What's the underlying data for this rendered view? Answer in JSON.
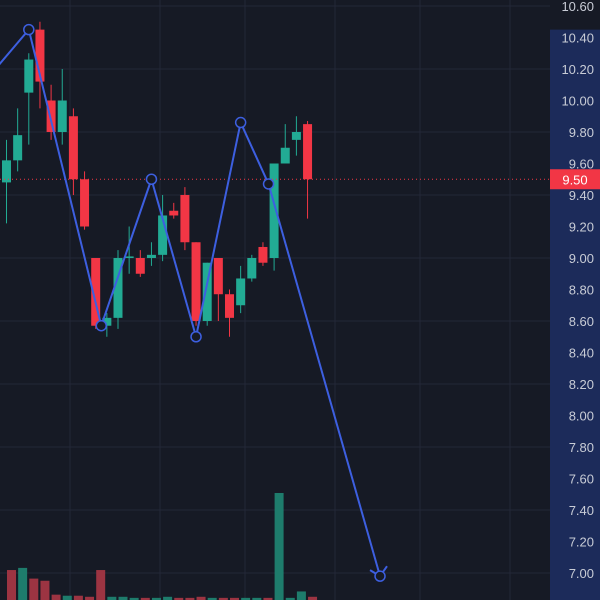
{
  "colors": {
    "background": "#161a25",
    "grid": "#232838",
    "axis_panel": "#1c2b5a",
    "up": "#22ab94",
    "down": "#f23645",
    "up_volume": "#1e7c6c",
    "down_volume": "#9c3442",
    "pattern_line": "#3d5fe0",
    "current_price": "#f23645",
    "axis_text": "#c8ccd6"
  },
  "chart_data": {
    "type": "candlestick",
    "title": "",
    "xlabel": "",
    "ylabel": "",
    "ylim": [
      7.0,
      10.6
    ],
    "grid": true,
    "current_price": 9.5,
    "current_price_label": "9.50",
    "y_ticks": [
      "7.00",
      "7.20",
      "7.40",
      "7.60",
      "7.80",
      "8.00",
      "8.20",
      "8.40",
      "8.60",
      "8.80",
      "9.00",
      "9.20",
      "9.40",
      "9.60",
      "9.80",
      "10.00",
      "10.20",
      "10.40",
      "10.60"
    ],
    "candles": [
      {
        "open": 9.48,
        "close": 9.62,
        "high": 9.75,
        "low": 9.22
      },
      {
        "open": 9.62,
        "close": 9.78,
        "high": 9.95,
        "low": 9.55
      },
      {
        "open": 10.05,
        "close": 10.26,
        "high": 10.3,
        "low": 9.72
      },
      {
        "open": 10.45,
        "close": 10.12,
        "high": 10.5,
        "low": 9.95
      },
      {
        "open": 10.0,
        "close": 9.8,
        "high": 10.1,
        "low": 9.75
      },
      {
        "open": 9.8,
        "close": 10.0,
        "high": 10.2,
        "low": 9.72
      },
      {
        "open": 9.9,
        "close": 9.5,
        "high": 9.95,
        "low": 9.4
      },
      {
        "open": 9.5,
        "close": 9.2,
        "high": 9.55,
        "low": 9.18
      },
      {
        "open": 9.0,
        "close": 8.57,
        "high": 9.0,
        "low": 8.55
      },
      {
        "open": 8.57,
        "close": 8.62,
        "high": 8.65,
        "low": 8.5
      },
      {
        "open": 8.62,
        "close": 9.0,
        "high": 9.05,
        "low": 8.55
      },
      {
        "open": 9.0,
        "close": 9.01,
        "high": 9.2,
        "low": 8.9
      },
      {
        "open": 9.0,
        "close": 8.9,
        "high": 9.05,
        "low": 8.88
      },
      {
        "open": 9.0,
        "close": 9.02,
        "high": 9.1,
        "low": 8.95
      },
      {
        "open": 9.02,
        "close": 9.27,
        "high": 9.4,
        "low": 8.98
      },
      {
        "open": 9.3,
        "close": 9.27,
        "high": 9.35,
        "low": 9.25
      },
      {
        "open": 9.4,
        "close": 9.1,
        "high": 9.45,
        "low": 9.05
      },
      {
        "open": 9.1,
        "close": 8.6,
        "high": 9.1,
        "low": 8.57
      },
      {
        "open": 8.6,
        "close": 8.97,
        "high": 8.97,
        "low": 8.57
      },
      {
        "open": 9.0,
        "close": 8.77,
        "high": 9.0,
        "low": 8.6
      },
      {
        "open": 8.77,
        "close": 8.62,
        "high": 8.8,
        "low": 8.5
      },
      {
        "open": 8.7,
        "close": 8.87,
        "high": 8.95,
        "low": 8.65
      },
      {
        "open": 8.87,
        "close": 9.0,
        "high": 9.02,
        "low": 8.85
      },
      {
        "open": 9.07,
        "close": 8.97,
        "high": 9.1,
        "low": 8.95
      },
      {
        "open": 9.0,
        "close": 9.6,
        "high": 9.6,
        "low": 8.92
      },
      {
        "open": 9.6,
        "close": 9.7,
        "high": 9.85,
        "low": 9.6
      },
      {
        "open": 9.75,
        "close": 9.8,
        "high": 9.9,
        "low": 9.65
      },
      {
        "open": 9.85,
        "close": 9.5,
        "high": 9.87,
        "low": 9.25
      }
    ],
    "volume": [
      {
        "value": 0.28,
        "direction": "down"
      },
      {
        "value": 0.3,
        "direction": "up"
      },
      {
        "value": 0.2,
        "direction": "down"
      },
      {
        "value": 0.18,
        "direction": "down"
      },
      {
        "value": 0.05,
        "direction": "down"
      },
      {
        "value": 0.04,
        "direction": "up"
      },
      {
        "value": 0.04,
        "direction": "down"
      },
      {
        "value": 0.03,
        "direction": "down"
      },
      {
        "value": 0.28,
        "direction": "down"
      },
      {
        "value": 0.03,
        "direction": "up"
      },
      {
        "value": 0.03,
        "direction": "up"
      },
      {
        "value": 0.02,
        "direction": "up"
      },
      {
        "value": 0.02,
        "direction": "down"
      },
      {
        "value": 0.02,
        "direction": "up"
      },
      {
        "value": 0.03,
        "direction": "up"
      },
      {
        "value": 0.02,
        "direction": "down"
      },
      {
        "value": 0.02,
        "direction": "down"
      },
      {
        "value": 0.03,
        "direction": "down"
      },
      {
        "value": 0.02,
        "direction": "up"
      },
      {
        "value": 0.02,
        "direction": "down"
      },
      {
        "value": 0.02,
        "direction": "down"
      },
      {
        "value": 0.02,
        "direction": "up"
      },
      {
        "value": 0.02,
        "direction": "up"
      },
      {
        "value": 0.02,
        "direction": "down"
      },
      {
        "value": 1.0,
        "direction": "up"
      },
      {
        "value": 0.02,
        "direction": "up"
      },
      {
        "value": 0.08,
        "direction": "up"
      },
      {
        "value": 0.03,
        "direction": "down"
      }
    ],
    "pattern_points": [
      {
        "bar": -1.0,
        "price": 10.2
      },
      {
        "bar": 2.0,
        "price": 10.45
      },
      {
        "bar": 8.5,
        "price": 8.57
      },
      {
        "bar": 13.0,
        "price": 9.5
      },
      {
        "bar": 17.0,
        "price": 8.5
      },
      {
        "bar": 21.0,
        "price": 9.86
      },
      {
        "bar": 23.5,
        "price": 9.47
      },
      {
        "bar": 33.5,
        "price": 6.98
      }
    ],
    "marker_points": [
      1,
      2,
      3,
      4,
      5,
      6,
      7
    ]
  }
}
